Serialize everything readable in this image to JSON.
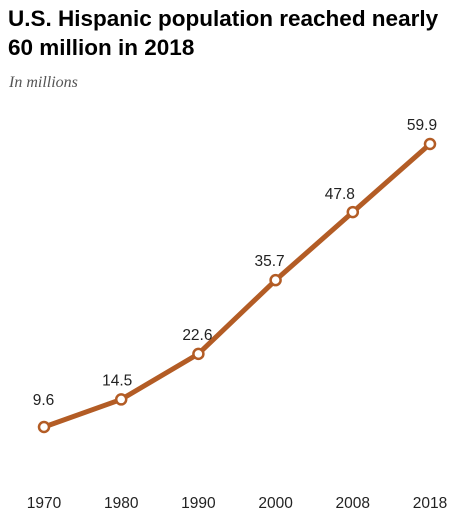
{
  "title": "U.S. Hispanic population reached nearly 60 million in 2018",
  "subtitle": "In millions",
  "colors": {
    "line": "#b35c25",
    "marker_fill": "#ffffff"
  },
  "chart_data": {
    "type": "line",
    "title": "U.S. Hispanic population reached nearly 60 million in 2018",
    "subtitle": "In millions",
    "x": [
      1970,
      1980,
      1990,
      2000,
      2008,
      2018
    ],
    "x_tick_labels": [
      "1970",
      "1980",
      "1990",
      "2000",
      "2008",
      "2018"
    ],
    "series": [
      {
        "values": [
          9.6,
          14.5,
          22.6,
          35.7,
          47.8,
          59.9
        ],
        "labels": [
          "9.6",
          "14.5",
          "22.6",
          "35.7",
          "47.8",
          "59.9"
        ]
      }
    ],
    "grid": false,
    "legend": "none"
  }
}
